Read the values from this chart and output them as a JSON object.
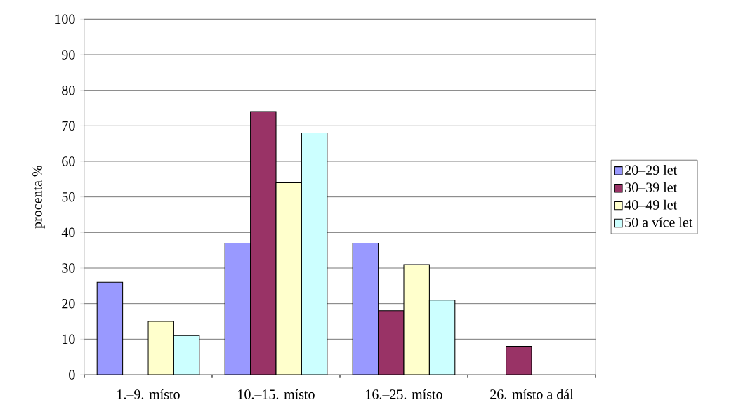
{
  "chart_data": {
    "type": "bar",
    "ylabel": "procenta %",
    "categories": [
      "1.–9. místo",
      "10.–15. místo",
      "16.–25. místo",
      "26. místo a dál"
    ],
    "series": [
      {
        "name": "20–29 let",
        "color": "#9999ff",
        "values": [
          26,
          37,
          37,
          null
        ]
      },
      {
        "name": "30–39 let",
        "color": "#993366",
        "values": [
          null,
          74,
          18,
          8
        ]
      },
      {
        "name": "40–49 let",
        "color": "#ffffcc",
        "values": [
          15,
          54,
          31,
          null
        ]
      },
      {
        "name": "50 a více let",
        "color": "#ccffff",
        "values": [
          11,
          68,
          21,
          null
        ]
      }
    ],
    "ylim": [
      0,
      100
    ],
    "yticks": [
      0,
      10,
      20,
      30,
      40,
      50,
      60,
      70,
      80,
      90,
      100
    ],
    "grid": "y",
    "legend": "right"
  }
}
